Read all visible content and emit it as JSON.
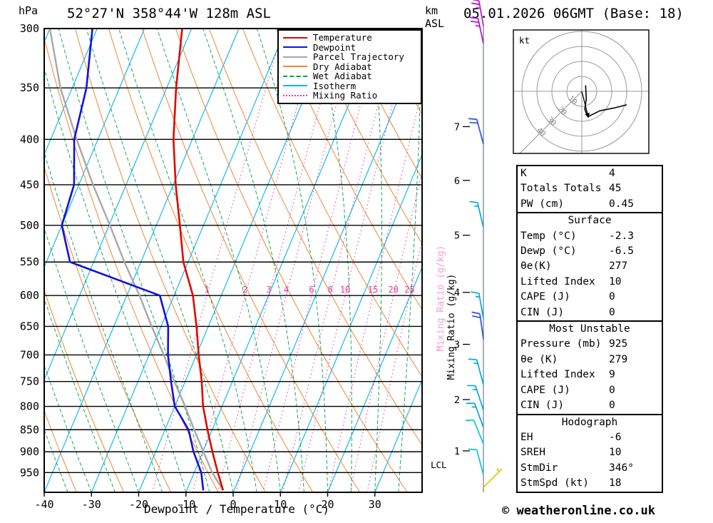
{
  "header": {
    "pressure_unit": "hPa",
    "station_title": "52°27'N 358°44'W 128m ASL",
    "altitude_unit_top": "km",
    "altitude_unit_bottom": "ASL",
    "datetime_title": "05.01.2026 06GMT (Base: 18)"
  },
  "axes": {
    "x_label": "Dewpoint / Temperature (°C)",
    "x_ticks": [
      -40,
      -30,
      -20,
      -10,
      0,
      10,
      20,
      30
    ],
    "pressure_ticks": [
      300,
      350,
      400,
      450,
      500,
      550,
      600,
      650,
      700,
      750,
      800,
      850,
      900,
      950
    ],
    "km_ticks": [
      1,
      2,
      3,
      4,
      5,
      6,
      7
    ],
    "mixing_ratio_label": "Mixing Ratio (g/kg)"
  },
  "legend": {
    "items": [
      {
        "label": "Temperature",
        "color": "#e10600",
        "style": "solid"
      },
      {
        "label": "Dewpoint",
        "color": "#1212d6",
        "style": "solid"
      },
      {
        "label": "Parcel Trajectory",
        "color": "#a8a8a8",
        "style": "solid"
      },
      {
        "label": "Dry Adiabat",
        "color": "#ef8633",
        "style": "solid"
      },
      {
        "label": "Wet Adiabat",
        "color": "#00a050",
        "style": "dashed"
      },
      {
        "label": "Isotherm",
        "color": "#00b4f0",
        "style": "solid"
      },
      {
        "label": "Mixing Ratio",
        "color": "#e833a0",
        "style": "dotted"
      }
    ]
  },
  "chart_data": {
    "type": "skewt-logp-sounding",
    "pressure_range_hpa": [
      300,
      1000
    ],
    "temp_axis_range_c": [
      -40,
      40
    ],
    "sounding": [
      {
        "p": 995,
        "t": -2.3,
        "td": -6.5
      },
      {
        "p": 950,
        "t": -5,
        "td": -8.5
      },
      {
        "p": 900,
        "t": -8,
        "td": -12
      },
      {
        "p": 850,
        "t": -11,
        "td": -15
      },
      {
        "p": 800,
        "t": -14,
        "td": -20
      },
      {
        "p": 750,
        "t": -16.5,
        "td": -23
      },
      {
        "p": 700,
        "t": -19.5,
        "td": -26
      },
      {
        "p": 650,
        "t": -22.5,
        "td": -28.5
      },
      {
        "p": 600,
        "t": -26,
        "td": -33
      },
      {
        "p": 550,
        "t": -31,
        "td": -55
      },
      {
        "p": 500,
        "t": -35,
        "td": -60
      },
      {
        "p": 450,
        "t": -39.5,
        "td": -61
      },
      {
        "p": 400,
        "t": -44,
        "td": -65
      },
      {
        "p": 350,
        "t": -48,
        "td": -67
      },
      {
        "p": 300,
        "t": -52,
        "td": -71
      }
    ],
    "parcel": [
      {
        "p": 995,
        "t": -2.3
      },
      {
        "p": 950,
        "t": -6.2
      },
      {
        "p": 900,
        "t": -9.9
      },
      {
        "p": 850,
        "t": -13.8
      },
      {
        "p": 800,
        "t": -17.8
      },
      {
        "p": 750,
        "t": -22.3
      },
      {
        "p": 700,
        "t": -26.9
      },
      {
        "p": 650,
        "t": -32
      },
      {
        "p": 600,
        "t": -37.3
      },
      {
        "p": 550,
        "t": -43.5
      },
      {
        "p": 500,
        "t": -49.8
      },
      {
        "p": 450,
        "t": -57
      },
      {
        "p": 400,
        "t": -64.5
      },
      {
        "p": 350,
        "t": -72.5
      },
      {
        "p": 300,
        "t": -80
      }
    ],
    "mixing_ratio_lines_gkg": [
      1,
      2,
      3,
      4,
      6,
      8,
      10,
      15,
      20,
      25
    ],
    "km_tick_pressures": [
      898,
      786,
      681,
      595,
      513,
      445,
      387
    ],
    "lcl": {
      "label": "LCL",
      "pressure": 932
    },
    "wind_barbs": [
      {
        "p": 298,
        "dir": 350,
        "spd": 25
      },
      {
        "p": 312,
        "dir": 348,
        "spd": 25
      },
      {
        "p": 405,
        "dir": 345,
        "spd": 20
      },
      {
        "p": 503,
        "dir": 347,
        "spd": 15
      },
      {
        "p": 637,
        "dir": 350,
        "spd": 15
      },
      {
        "p": 672,
        "dir": 352,
        "spd": 20
      },
      {
        "p": 756,
        "dir": 345,
        "spd": 15
      },
      {
        "p": 808,
        "dir": 342,
        "spd": 15
      },
      {
        "p": 845,
        "dir": 340,
        "spd": 15
      },
      {
        "p": 882,
        "dir": 338,
        "spd": 10
      },
      {
        "p": 955,
        "dir": 345,
        "spd": 10
      },
      {
        "p": 987,
        "dir": 45,
        "spd": 5
      }
    ],
    "barb_speed_colors": {
      "5": "#ddc800",
      "10": "#00c8e0",
      "15": "#00a8e0",
      "20": "#2d50e6",
      "25": "#b414d2"
    },
    "hodograph": {
      "unit": "kt",
      "rings_kt": [
        10,
        20,
        30,
        40
      ],
      "trace_uv_kt": [
        [
          2.5,
          4
        ],
        [
          3,
          -5
        ],
        [
          2,
          -12
        ],
        [
          4,
          -17
        ],
        [
          12,
          -13
        ],
        [
          22,
          -11
        ],
        [
          30,
          -9
        ]
      ],
      "storm_motion_uv_kt": [
        4.4,
        -17.5
      ]
    }
  },
  "info_panel": {
    "sections": [
      {
        "rows": [
          [
            "K",
            "4"
          ],
          [
            "Totals Totals",
            "45"
          ],
          [
            "PW (cm)",
            "0.45"
          ]
        ]
      },
      {
        "title": "Surface",
        "rows": [
          [
            "Temp (°C)",
            "-2.3"
          ],
          [
            "Dewp (°C)",
            "-6.5"
          ],
          [
            "θe(K)",
            "277"
          ],
          [
            "Lifted Index",
            "10"
          ],
          [
            "CAPE (J)",
            "0"
          ],
          [
            "CIN (J)",
            "0"
          ]
        ]
      },
      {
        "title": "Most Unstable",
        "rows": [
          [
            "Pressure (mb)",
            "925"
          ],
          [
            "θe (K)",
            "279"
          ],
          [
            "Lifted Index",
            "9"
          ],
          [
            "CAPE (J)",
            "0"
          ],
          [
            "CIN (J)",
            "0"
          ]
        ]
      },
      {
        "title": "Hodograph",
        "rows": [
          [
            "EH",
            "-6"
          ],
          [
            "SREH",
            "10"
          ],
          [
            "StmDir",
            "346°"
          ],
          [
            "StmSpd (kt)",
            "18"
          ]
        ]
      }
    ]
  },
  "footer": {
    "copyright": "© weatheronline.co.uk"
  },
  "colors": {
    "isotherm": "#00b4f0",
    "dry_adiabat": "#ef8633",
    "wet_adiabat": "#00a050",
    "mixing_ratio": "#e833a0",
    "temperature": "#e10600",
    "dewpoint": "#1212d6",
    "parcel": "#a8a8a8",
    "isobar": "#000000",
    "mix_label_pink": "#f2a0cc",
    "barb_staff_line": "#51606e",
    "hodo_grid": "#999999"
  }
}
